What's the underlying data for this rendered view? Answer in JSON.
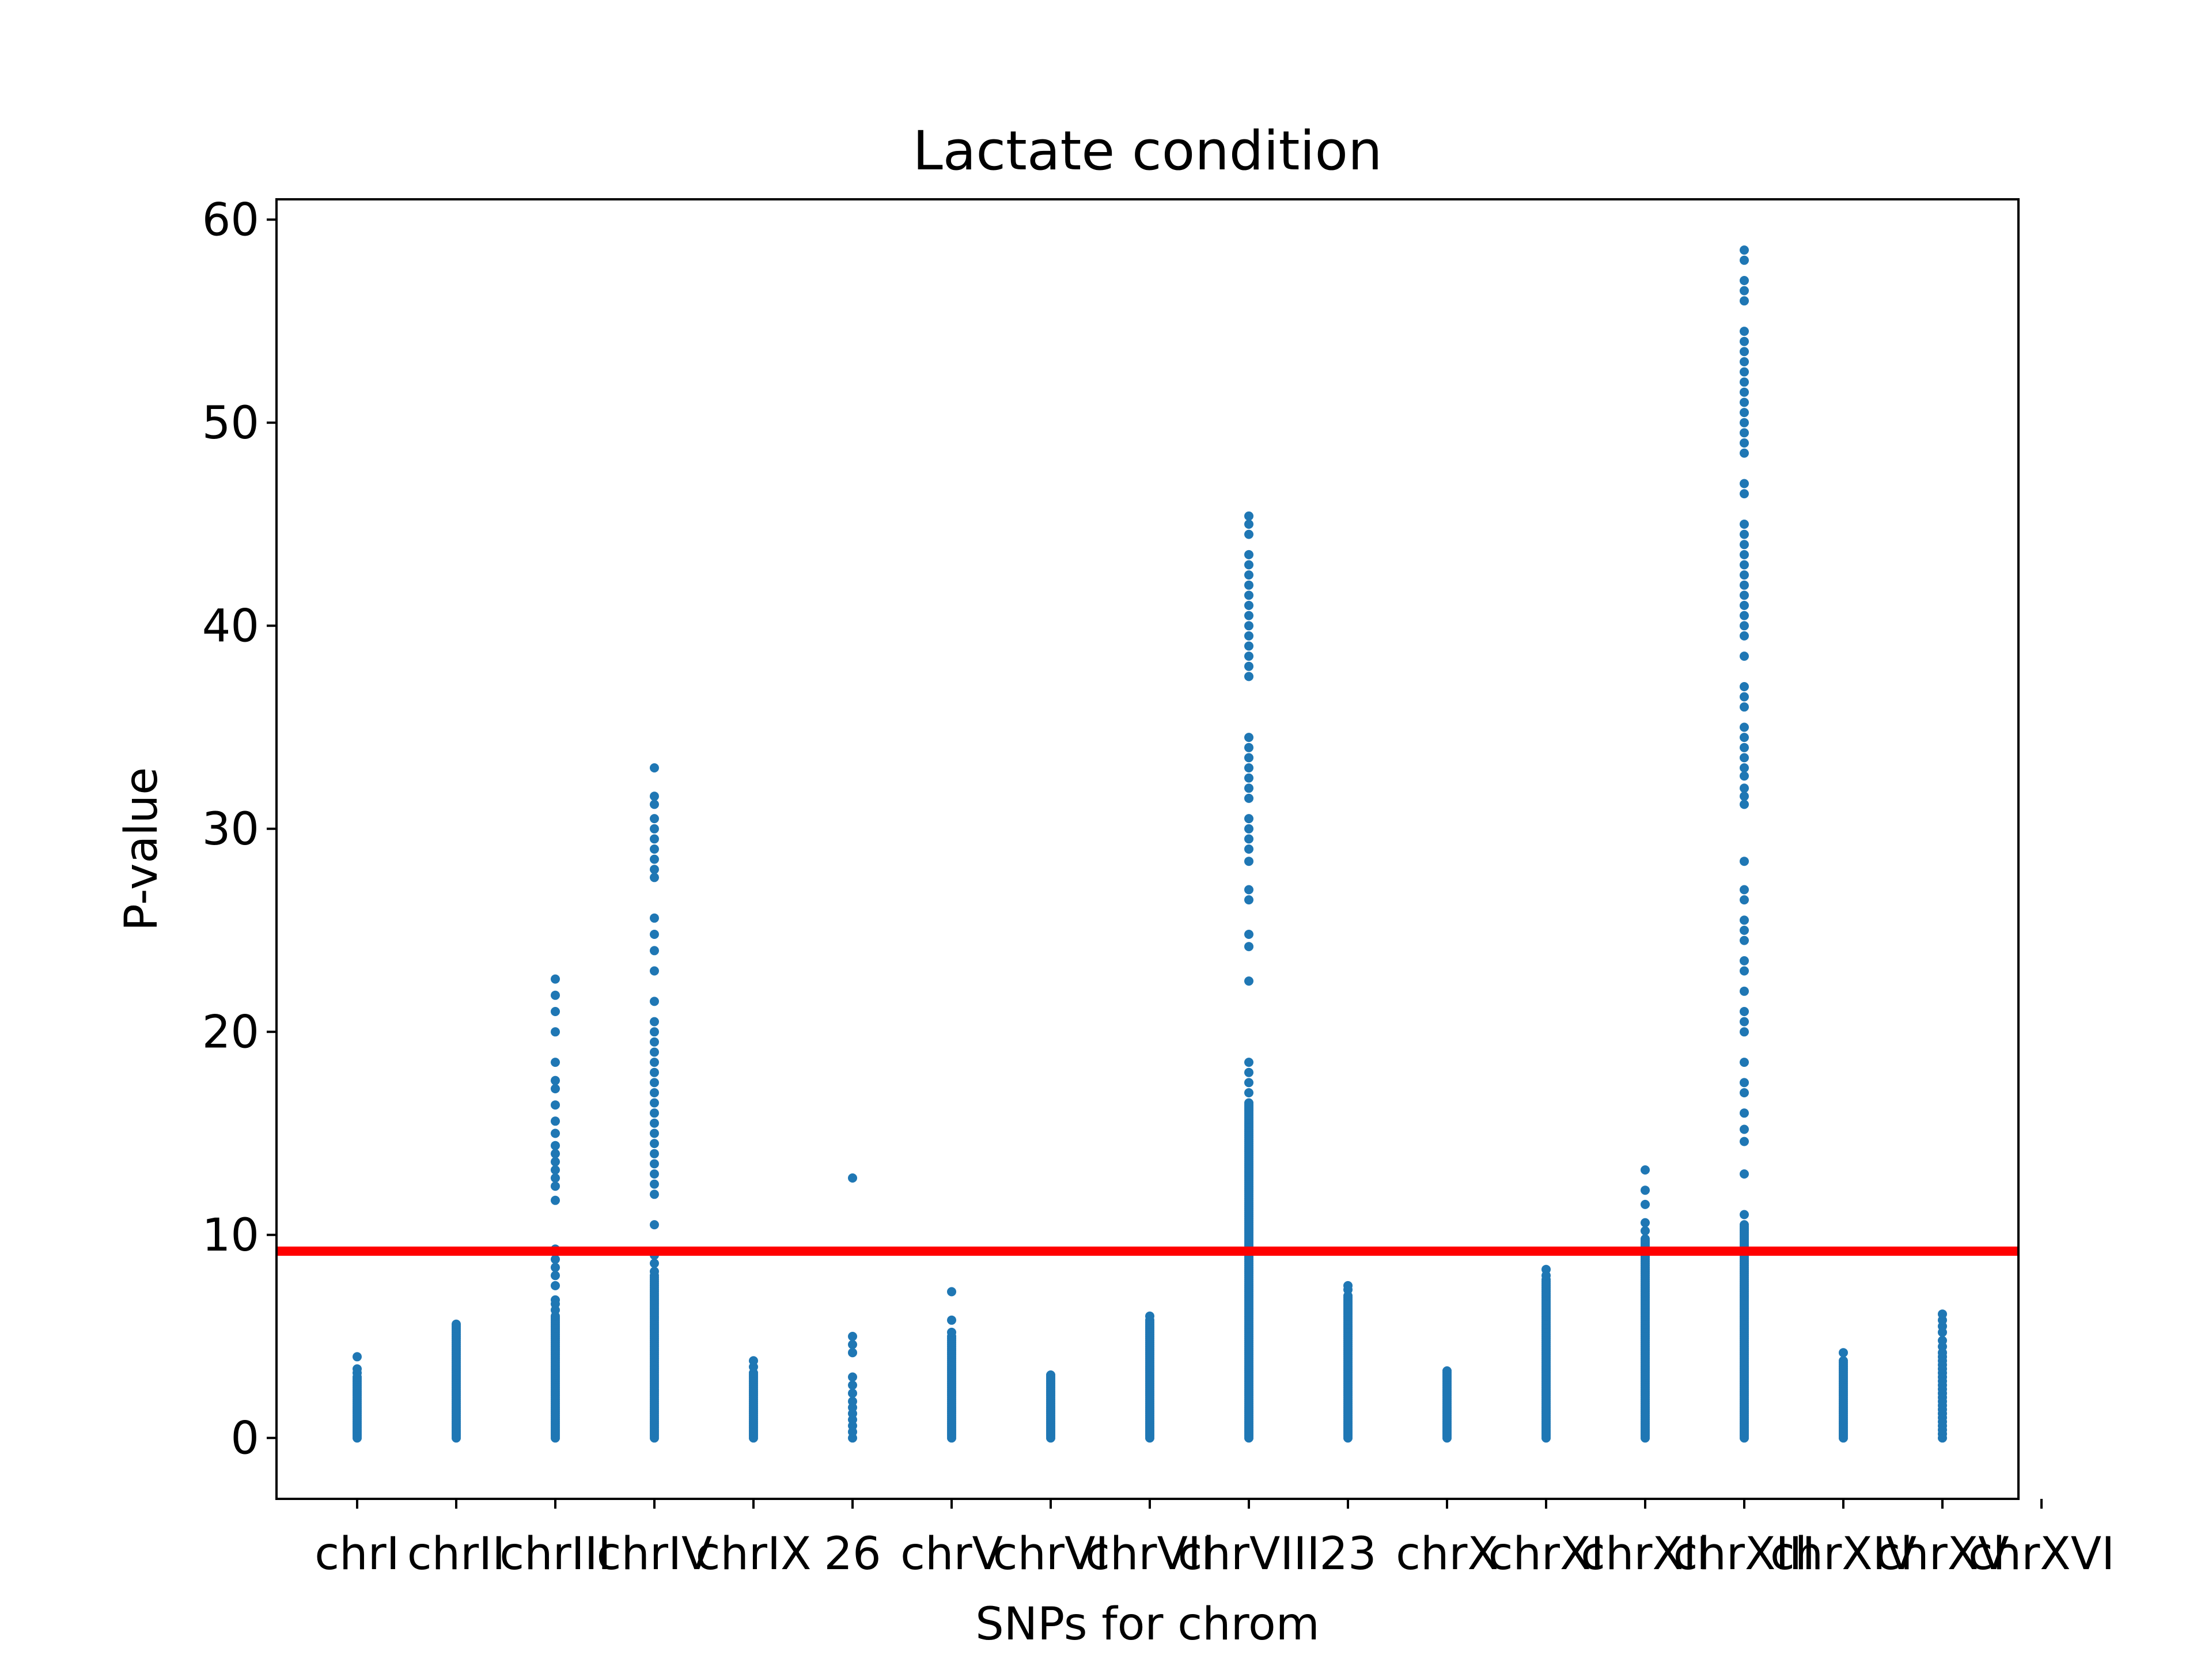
{
  "colors": {
    "points": "#1f77b4",
    "threshold_line": "#ff0000",
    "axes": "#000000",
    "background": "#ffffff"
  },
  "chart_data": {
    "type": "scatter",
    "title": "Lactate condition",
    "xlabel": "SNPs for chrom",
    "ylabel": "P-value",
    "ylim": [
      -3,
      61
    ],
    "yticks": [
      0,
      10,
      20,
      30,
      40,
      50,
      60
    ],
    "grid": false,
    "legend": "none",
    "threshold": {
      "y": 9.2
    },
    "categories": [
      "chrI",
      "chrII",
      "chrIII",
      "chrIV",
      "chrIX",
      "26",
      "chrV",
      "chrVI",
      "chrVII",
      "chrVIII",
      "23",
      "chrX",
      "chrXI",
      "chrXII",
      "chrXIII",
      "chrXIV",
      "chrXV",
      "chrXVI"
    ],
    "series": [
      {
        "groups": [
          {
            "category": "chrI",
            "dense_max": 3.0,
            "points": [
              3.2,
              3.4,
              4.0
            ]
          },
          {
            "category": "chrII",
            "dense_max": 5.5,
            "points": [
              5.6
            ]
          },
          {
            "category": "chrIII",
            "dense_max": 6.0,
            "points": [
              6.3,
              6.6,
              6.8,
              7.5,
              8.0,
              8.4,
              8.8,
              9.3,
              11.7,
              12.4,
              12.8,
              13.2,
              13.6,
              14.0,
              14.4,
              15.0,
              15.6,
              16.4,
              17.2,
              17.6,
              18.5,
              20.0,
              21.0,
              21.8,
              22.6
            ]
          },
          {
            "category": "chrIV",
            "dense_max": 8.0,
            "points": [
              8.2,
              8.6,
              9.0,
              10.5,
              12.0,
              12.5,
              13.0,
              13.5,
              14.0,
              14.5,
              15.0,
              15.5,
              16.0,
              16.5,
              17.0,
              17.5,
              18.0,
              18.5,
              19.0,
              19.5,
              20.0,
              20.5,
              21.5,
              23.0,
              24.0,
              24.8,
              25.6,
              27.6,
              28.0,
              28.5,
              29.0,
              29.5,
              30.0,
              30.5,
              31.2,
              31.6,
              33.0
            ]
          },
          {
            "category": "chrIX",
            "dense_max": 3.2,
            "points": [
              3.5,
              3.8
            ]
          },
          {
            "category": "26",
            "dense_max": 0,
            "points": [
              0.0,
              0.3,
              0.6,
              0.9,
              1.2,
              1.5,
              1.8,
              2.2,
              2.6,
              3.0,
              4.2,
              4.6,
              5.0,
              12.8
            ]
          },
          {
            "category": "chrV",
            "dense_max": 5.0,
            "points": [
              5.2,
              5.8,
              7.2
            ]
          },
          {
            "category": "chrVI",
            "dense_max": 3.0,
            "points": [
              3.1
            ]
          },
          {
            "category": "chrVII",
            "dense_max": 5.8,
            "points": [
              6.0
            ]
          },
          {
            "category": "chrVIII",
            "dense_max": 16.5,
            "points": [
              17.0,
              17.5,
              18.0,
              18.5,
              22.5,
              24.2,
              24.8,
              26.5,
              27.0,
              28.4,
              29.0,
              29.5,
              30.0,
              30.5,
              31.5,
              32.0,
              32.5,
              33.0,
              33.5,
              34.0,
              34.5,
              37.5,
              38.0,
              38.5,
              39.0,
              39.5,
              40.0,
              40.5,
              41.0,
              41.5,
              42.0,
              42.5,
              43.0,
              43.5,
              44.5,
              45.0,
              45.4
            ]
          },
          {
            "category": "23",
            "dense_max": 7.0,
            "points": [
              7.3,
              7.5
            ]
          },
          {
            "category": "chrX",
            "dense_max": 3.2,
            "points": [
              3.3
            ]
          },
          {
            "category": "chrXI",
            "dense_max": 7.8,
            "points": [
              8.0,
              8.3
            ]
          },
          {
            "category": "chrXII",
            "dense_max": 9.8,
            "points": [
              10.2,
              10.6,
              11.5,
              12.2,
              13.2
            ]
          },
          {
            "category": "chrXIII",
            "dense_max": 10.5,
            "points": [
              11.0,
              13.0,
              14.6,
              15.2,
              16.0,
              17.0,
              17.5,
              18.5,
              20.0,
              20.5,
              21.0,
              22.0,
              23.0,
              23.5,
              24.5,
              25.0,
              25.5,
              26.5,
              27.0,
              28.4,
              31.2,
              31.6,
              32.0,
              32.6,
              33.0,
              33.5,
              34.0,
              34.5,
              35.0,
              36.0,
              36.5,
              37.0,
              38.5,
              39.5,
              40.0,
              40.5,
              41.0,
              41.5,
              42.0,
              42.5,
              43.0,
              43.5,
              44.0,
              44.5,
              45.0,
              46.5,
              47.0,
              48.5,
              49.0,
              49.5,
              50.0,
              50.5,
              51.0,
              51.5,
              52.0,
              52.5,
              53.0,
              53.5,
              54.0,
              54.5,
              56.0,
              56.5,
              57.0,
              58.0,
              58.5
            ]
          },
          {
            "category": "chrXIV",
            "dense_max": 3.8,
            "points": [
              4.2
            ]
          },
          {
            "category": "chrXV",
            "dense_max": 0,
            "points": [
              0.0,
              0.2,
              0.4,
              0.6,
              0.8,
              1.0,
              1.2,
              1.4,
              1.6,
              1.8,
              2.0,
              2.2,
              2.4,
              2.6,
              2.8,
              3.0,
              3.2,
              3.4,
              3.6,
              3.8,
              4.0,
              4.2,
              4.5,
              4.8,
              5.2,
              5.5,
              5.8,
              6.1
            ]
          }
        ]
      }
    ]
  }
}
